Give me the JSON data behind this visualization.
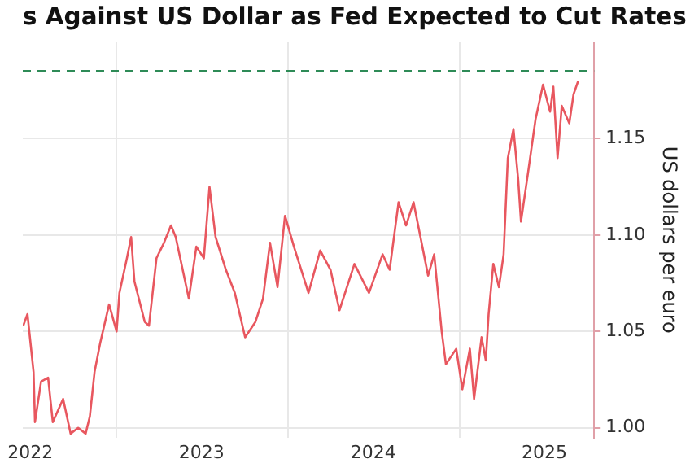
{
  "chart_data": {
    "type": "line",
    "title": "s Against US Dollar as Fed Expected to Cut Rates",
    "ylabel": "US dollars per euro",
    "x": [
      "2022-06-16",
      "2022-06-25",
      "2022-07-08",
      "2022-07-11",
      "2022-07-24",
      "2022-08-08",
      "2022-08-18",
      "2022-09-09",
      "2022-09-25",
      "2022-10-11",
      "2022-10-27",
      "2022-11-05",
      "2022-11-15",
      "2022-11-27",
      "2022-12-16",
      "2023-01-01",
      "2023-01-07",
      "2023-01-23",
      "2023-02-01",
      "2023-02-08",
      "2023-03-02",
      "2023-03-11",
      "2023-03-27",
      "2023-04-12",
      "2023-04-27",
      "2023-05-07",
      "2023-06-04",
      "2023-06-20",
      "2023-07-06",
      "2023-07-18",
      "2023-07-31",
      "2023-08-22",
      "2023-09-10",
      "2023-10-02",
      "2023-10-24",
      "2023-11-09",
      "2023-11-24",
      "2023-12-10",
      "2023-12-26",
      "2024-01-14",
      "2024-02-14",
      "2024-03-10",
      "2024-04-01",
      "2024-04-20",
      "2024-05-22",
      "2024-06-22",
      "2024-07-21",
      "2024-08-05",
      "2024-08-24",
      "2024-09-09",
      "2024-09-25",
      "2024-10-26",
      "2024-11-08",
      "2024-11-24",
      "2024-12-03",
      "2024-12-25",
      "2025-01-07",
      "2025-01-23",
      "2025-02-01",
      "2025-02-17",
      "2025-02-26",
      "2025-03-04",
      "2025-03-14",
      "2025-03-26",
      "2025-04-05",
      "2025-04-14",
      "2025-04-26",
      "2025-05-06",
      "2025-05-12",
      "2025-05-28",
      "2025-06-12",
      "2025-06-28",
      "2025-07-13",
      "2025-07-20",
      "2025-07-29",
      "2025-08-07",
      "2025-08-23",
      "2025-09-01",
      "2025-09-11"
    ],
    "series": [
      {
        "color": "#e8575f",
        "values": [
          1.053,
          1.059,
          1.029,
          1.003,
          1.024,
          1.026,
          1.003,
          1.015,
          0.997,
          1.0,
          0.997,
          1.006,
          1.029,
          1.044,
          1.064,
          1.05,
          1.07,
          1.088,
          1.099,
          1.076,
          1.055,
          1.053,
          1.088,
          1.096,
          1.105,
          1.099,
          1.067,
          1.094,
          1.088,
          1.125,
          1.099,
          1.082,
          1.07,
          1.047,
          1.055,
          1.067,
          1.096,
          1.073,
          1.11,
          1.094,
          1.07,
          1.092,
          1.082,
          1.061,
          1.085,
          1.07,
          1.09,
          1.082,
          1.117,
          1.105,
          1.117,
          1.079,
          1.09,
          1.05,
          1.033,
          1.041,
          1.02,
          1.041,
          1.015,
          1.047,
          1.035,
          1.059,
          1.085,
          1.073,
          1.09,
          1.14,
          1.155,
          1.129,
          1.107,
          1.134,
          1.16,
          1.178,
          1.164,
          1.177,
          1.14,
          1.167,
          1.158,
          1.173,
          1.18
        ]
      }
    ],
    "xlim": [
      "2022-06-15",
      "2025-10-15"
    ],
    "xticks": [
      {
        "value": "2022-07-01",
        "label": "2022"
      },
      {
        "value": "2023-01-01",
        "label": null
      },
      {
        "value": "2023-07-01",
        "label": "2023"
      },
      {
        "value": "2024-01-01",
        "label": null
      },
      {
        "value": "2024-07-01",
        "label": "2024"
      },
      {
        "value": "2025-01-01",
        "label": null
      },
      {
        "value": "2025-07-01",
        "label": "2025"
      }
    ],
    "ylim": [
      0.995,
      1.2
    ],
    "yticks": [
      {
        "value": 1.0,
        "label": "1.00"
      },
      {
        "value": 1.05,
        "label": "1.05"
      },
      {
        "value": 1.1,
        "label": "1.10"
      },
      {
        "value": 1.15,
        "label": "1.15"
      }
    ],
    "ref_lines": [
      {
        "axis": "y",
        "value": 1.185,
        "color": "#2e8b57",
        "line_style": "dashed"
      }
    ],
    "grid": true,
    "legend": false,
    "marker": "none",
    "line_style": "solid"
  }
}
